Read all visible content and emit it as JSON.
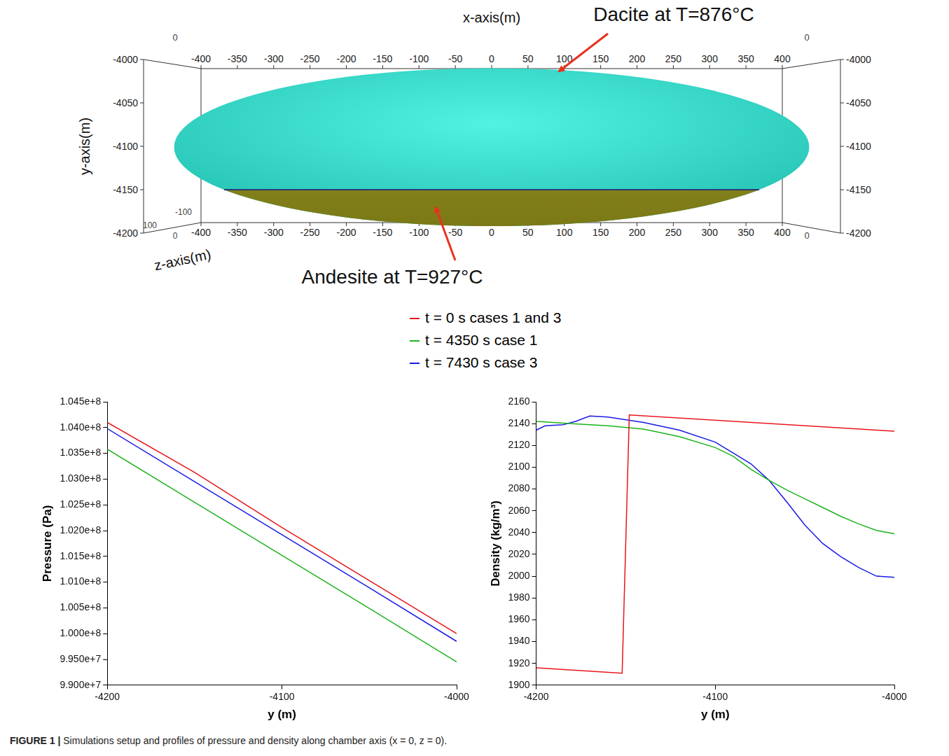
{
  "diagram": {
    "x_axis_label": "x-axis(m)",
    "y_axis_label": "y-axis(m)",
    "z_axis_label": "z-axis(m)",
    "x_ticks": [
      -400,
      -350,
      -300,
      -250,
      -200,
      -150,
      -100,
      -50,
      0,
      50,
      100,
      150,
      200,
      250,
      300,
      350,
      400
    ],
    "y_ticks": [
      -4000,
      -4050,
      -4100,
      -4150,
      -4200
    ],
    "z_ticks": [
      100,
      0,
      -100
    ],
    "chamber": {
      "x_min": -437,
      "x_max": 437,
      "y_top": -4010,
      "y_bottom": -4192,
      "interface_y": -4150
    },
    "annotations": [
      {
        "text": "Dacite at T=876°C"
      },
      {
        "text": "Andesite at T=927°C"
      }
    ]
  },
  "chart_data": [
    {
      "type": "line",
      "x_label": "y (m)",
      "y_label": "Pressure (Pa)",
      "xlim": [
        -4200,
        -4000
      ],
      "xticks": [
        -4200,
        -4100,
        -4000
      ],
      "ylim": [
        99000000,
        104500000
      ],
      "yticks": [
        {
          "value": 99000000,
          "label": "9.900e+7"
        },
        {
          "value": 99500000,
          "label": "9.950e+7"
        },
        {
          "value": 100000000,
          "label": "1.000e+8"
        },
        {
          "value": 100500000,
          "label": "1.005e+8"
        },
        {
          "value": 101000000,
          "label": "1.010e+8"
        },
        {
          "value": 101500000,
          "label": "1.015e+8"
        },
        {
          "value": 102000000,
          "label": "1.020e+8"
        },
        {
          "value": 102500000,
          "label": "1.025e+8"
        },
        {
          "value": 103000000,
          "label": "1.030e+8"
        },
        {
          "value": 103500000,
          "label": "1.035e+8"
        },
        {
          "value": 104000000,
          "label": "1.040e+8"
        },
        {
          "value": 104500000,
          "label": "1.045e+8"
        }
      ],
      "grid": false,
      "legend": "top",
      "series": [
        {
          "name": "t = 0 s cases 1 and 3",
          "color": "#e8141b",
          "x": [
            -4200,
            -4150,
            -4100,
            -4050,
            -4000
          ],
          "values": [
            104100000,
            103130000,
            102060000,
            101030000,
            100000000
          ]
        },
        {
          "name": "t = 4350 s case 1",
          "color": "#1db31d",
          "x": [
            -4200,
            -4150,
            -4100,
            -4050,
            -4000
          ],
          "values": [
            103580000,
            102550000,
            101520000,
            100490000,
            99450000
          ]
        },
        {
          "name": "t = 7430 s case 3",
          "color": "#1a1ae6",
          "x": [
            -4200,
            -4150,
            -4100,
            -4050,
            -4000
          ],
          "values": [
            103980000,
            102950000,
            101920000,
            100890000,
            99850000
          ]
        }
      ]
    },
    {
      "type": "line",
      "x_label": "y (m)",
      "y_label": "Density (kg/m³)",
      "xlim": [
        -4200,
        -4000
      ],
      "xticks": [
        -4200,
        -4100,
        -4000
      ],
      "ylim": [
        1900,
        2160
      ],
      "yticks": [
        1900,
        1920,
        1940,
        1960,
        1980,
        2000,
        2020,
        2040,
        2060,
        2080,
        2100,
        2120,
        2140,
        2160
      ],
      "grid": false,
      "series": [
        {
          "name": "t = 0 s cases 1 and 3",
          "color": "#e8141b",
          "x": [
            -4200,
            -4152,
            -4148,
            -4000
          ],
          "values": [
            1916,
            1911,
            2148,
            2133
          ]
        },
        {
          "name": "t = 4350 s case 1",
          "color": "#1db31d",
          "x": [
            -4200,
            -4180,
            -4160,
            -4140,
            -4120,
            -4100,
            -4090,
            -4080,
            -4070,
            -4060,
            -4050,
            -4040,
            -4030,
            -4020,
            -4010,
            -4000
          ],
          "values": [
            2142,
            2140,
            2138,
            2135,
            2128,
            2118,
            2110,
            2098,
            2088,
            2079,
            2071,
            2063,
            2055,
            2048,
            2042,
            2039
          ]
        },
        {
          "name": "t = 7430 s case 3",
          "color": "#1a1ae6",
          "x": [
            -4200,
            -4195,
            -4185,
            -4178,
            -4170,
            -4160,
            -4140,
            -4120,
            -4100,
            -4090,
            -4080,
            -4070,
            -4060,
            -4050,
            -4040,
            -4030,
            -4020,
            -4010,
            -4000
          ],
          "values": [
            2134,
            2138,
            2139,
            2142,
            2147,
            2146,
            2141,
            2134,
            2123,
            2113,
            2103,
            2088,
            2068,
            2047,
            2030,
            2018,
            2008,
            2000,
            1999
          ]
        }
      ]
    }
  ],
  "caption": {
    "label": "FIGURE 1 |",
    "text": "Simulations setup and profiles of pressure and density along chamber axis (x = 0, z = 0)."
  }
}
